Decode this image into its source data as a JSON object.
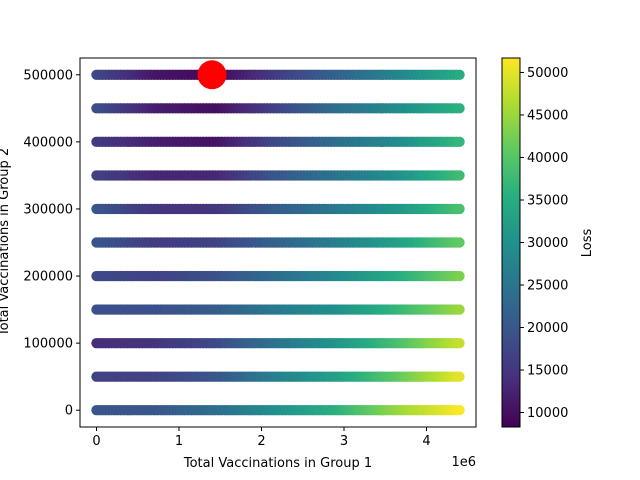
{
  "chart_data": {
    "type": "scatter",
    "title": "",
    "xlabel": "Total Vaccinations in Group 1",
    "ylabel": "Total Vaccinations in Group 2",
    "x_offset_label": "1e6",
    "xlim": [
      -200000,
      4600000
    ],
    "ylim": [
      -25000,
      525000
    ],
    "x_ticks": [
      0,
      1000000,
      2000000,
      3000000,
      4000000
    ],
    "x_tick_labels": [
      "0",
      "1",
      "2",
      "3",
      "4"
    ],
    "y_ticks": [
      0,
      100000,
      200000,
      300000,
      400000,
      500000
    ],
    "y_tick_labels": [
      "0",
      "100000",
      "200000",
      "300000",
      "400000",
      "500000"
    ],
    "grid": false,
    "colormap": "viridis",
    "colorbar": {
      "label": "Loss",
      "range": [
        8300,
        51700
      ],
      "ticks": [
        10000,
        15000,
        20000,
        25000,
        30000,
        35000,
        40000,
        45000,
        50000
      ],
      "tick_labels": [
        "10000",
        "15000",
        "20000",
        "25000",
        "30000",
        "35000",
        "40000",
        "45000",
        "50000"
      ]
    },
    "x_range": [
      0,
      4400000
    ],
    "rows": [
      {
        "y": 0,
        "loss_profile": [
          20000,
          20000,
          24000,
          30000,
          36000,
          45000,
          51500
        ]
      },
      {
        "y": 50000,
        "loss_profile": [
          17000,
          17000,
          20000,
          27000,
          33000,
          41000,
          50000
        ]
      },
      {
        "y": 100000,
        "loss_profile": [
          14000,
          15000,
          18000,
          25000,
          31000,
          39000,
          48000
        ]
      },
      {
        "y": 150000,
        "loss_profile": [
          19000,
          19000,
          21000,
          26000,
          30000,
          37000,
          45000
        ]
      },
      {
        "y": 200000,
        "loss_profile": [
          18000,
          17000,
          19000,
          24000,
          29000,
          35000,
          43000
        ]
      },
      {
        "y": 250000,
        "loss_profile": [
          20000,
          16000,
          17000,
          22000,
          27000,
          33000,
          41000
        ]
      },
      {
        "y": 300000,
        "loss_profile": [
          20000,
          15000,
          15000,
          21000,
          26000,
          31000,
          39000
        ]
      },
      {
        "y": 350000,
        "loss_profile": [
          17000,
          13000,
          13000,
          20000,
          25000,
          30000,
          38000
        ]
      },
      {
        "y": 400000,
        "loss_profile": [
          16000,
          12000,
          10500,
          18000,
          24000,
          29000,
          37000
        ]
      },
      {
        "y": 450000,
        "loss_profile": [
          19000,
          12000,
          10000,
          17000,
          24000,
          29000,
          36000
        ]
      },
      {
        "y": 500000,
        "loss_profile": [
          18000,
          11000,
          9000,
          16000,
          22000,
          28000,
          35000
        ]
      }
    ],
    "optimum": {
      "x": 1400000,
      "y": 500000,
      "color": "#ff0000"
    }
  }
}
